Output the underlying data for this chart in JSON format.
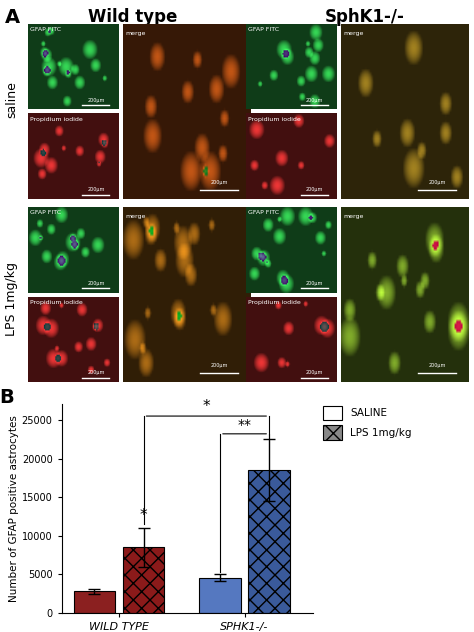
{
  "panel_B": {
    "ylabel": "Number of GFAP positive astrocytes",
    "groups": [
      "WILD TYPE",
      "SPHK1-/-"
    ],
    "values": [
      2800,
      8500,
      4600,
      18500
    ],
    "errors": [
      300,
      2500,
      500,
      4000
    ],
    "saline_colors": [
      "#8B2020",
      "#5578C0"
    ],
    "lps_colors": [
      "#8B1A1A",
      "#3A5A9B"
    ],
    "ylim": [
      0,
      27000
    ],
    "yticks": [
      0,
      5000,
      10000,
      15000,
      20000,
      25000
    ],
    "legend_labels": [
      "SALINE",
      "LPS 1mg/kg"
    ],
    "background_color": "#ffffff"
  },
  "panel_A": {
    "col_labels": [
      "Wild type",
      "SphK1-/-"
    ],
    "row_labels": [
      "saline",
      "LPS 1mg/kg"
    ],
    "col_label_fontsize": 12,
    "row_label_fontsize": 9,
    "label_A_fontsize": 14,
    "label_B_fontsize": 14
  }
}
